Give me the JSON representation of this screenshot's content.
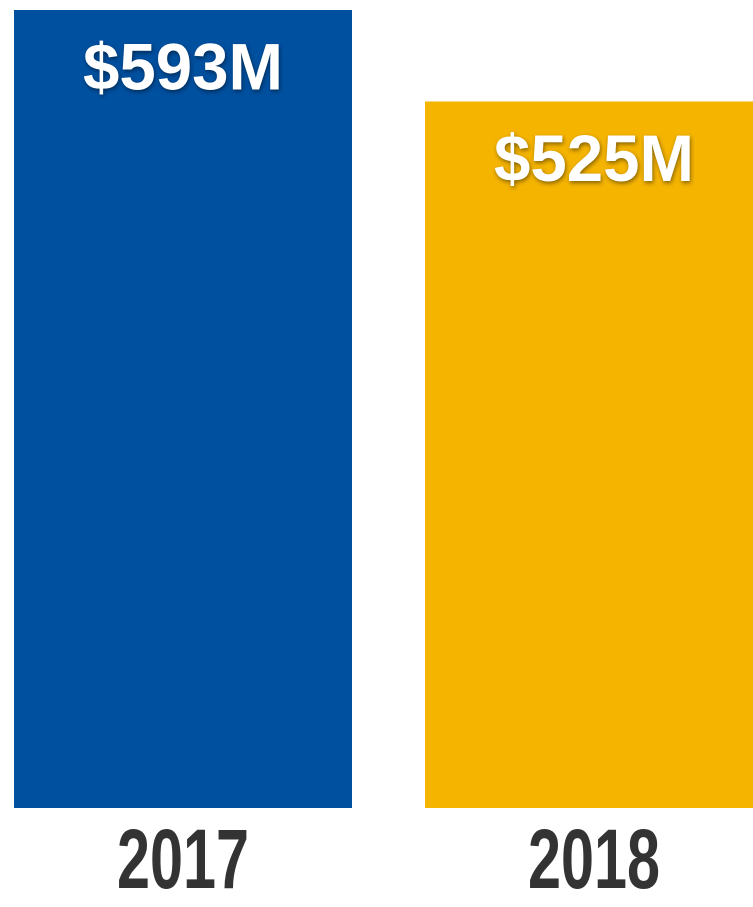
{
  "chart_data": {
    "type": "bar",
    "categories": [
      "2017",
      "2018"
    ],
    "values": [
      593,
      525
    ],
    "value_labels": [
      "$593M",
      "$525M"
    ],
    "colors": [
      "#0050a0",
      "#f5b400"
    ]
  }
}
